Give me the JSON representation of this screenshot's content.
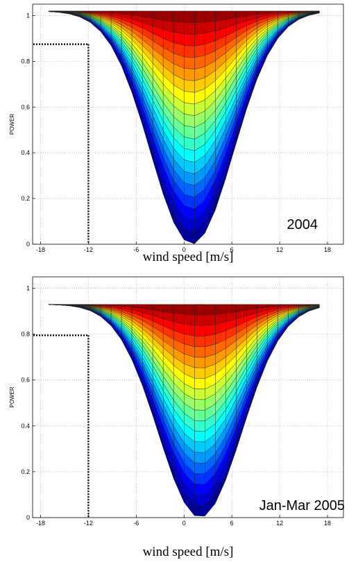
{
  "chart_data": [
    {
      "type": "surface",
      "xlabel": "wind speed [m/s]",
      "ylabel": "POWER",
      "annotation": "2004",
      "xlim": [
        -19,
        20
      ],
      "ylim": [
        0,
        1.05
      ],
      "xticks": [
        -18,
        -12,
        -6,
        0,
        6,
        12,
        18
      ],
      "xtick_labels": [
        "-18",
        "-12",
        "-6",
        "0",
        "6",
        "12",
        "18"
      ],
      "yticks": [
        0,
        0.2,
        0.4,
        0.6,
        0.8,
        1
      ],
      "ytick_labels": [
        "0",
        "0.2",
        "0.4",
        "0.6",
        "0.8",
        "1"
      ],
      "grid": true,
      "surface_center": 1,
      "surface_top": 1.02,
      "surface_extent": [
        -17,
        17
      ],
      "marker": {
        "x": -12,
        "y": 0.875
      }
    },
    {
      "type": "surface",
      "xlabel": "wind speed [m/s]",
      "ylabel": "POWER",
      "annotation": "Jan-Mar 2005",
      "xlim": [
        -19,
        20
      ],
      "ylim": [
        0,
        1.05
      ],
      "xticks": [
        -18,
        -12,
        -6,
        0,
        6,
        12,
        18
      ],
      "xtick_labels": [
        "-18",
        "-12",
        "-6",
        "0",
        "6",
        "12",
        "18"
      ],
      "yticks": [
        0,
        0.2,
        0.4,
        0.6,
        0.8,
        1
      ],
      "ytick_labels": [
        "0",
        "0.2",
        "0.4",
        "0.6",
        "0.8",
        "1"
      ],
      "grid": true,
      "surface_center": 2,
      "surface_top": 0.93,
      "surface_extent": [
        -17,
        17
      ],
      "marker": {
        "x": -12,
        "y": 0.795
      }
    }
  ]
}
